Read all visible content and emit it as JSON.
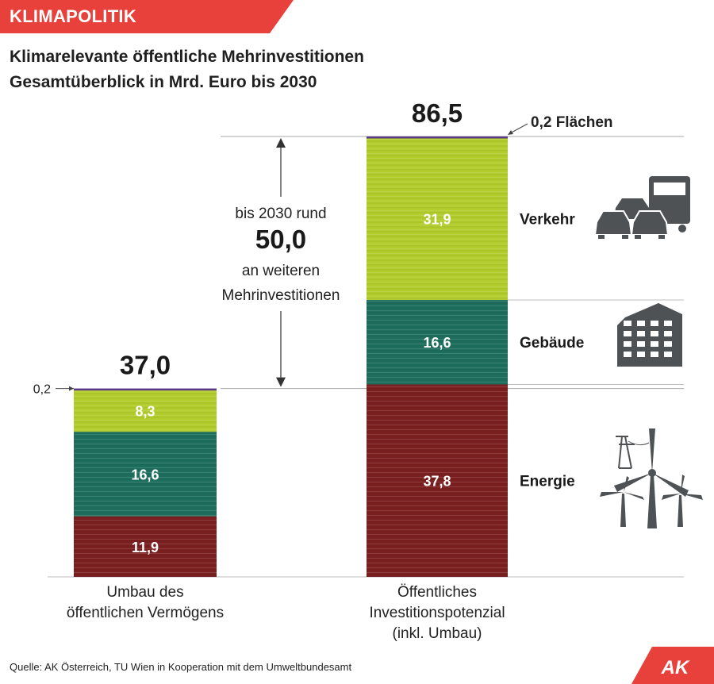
{
  "header": {
    "section": "KLIMAPOLITIK",
    "title_line1": "Klimarelevante öffentliche Mehrinvestitionen",
    "title_line2": "Gesamtüberblick in Mrd. Euro bis 2030"
  },
  "colors": {
    "accent_red": "#e8413b",
    "verkehr": "#b3cd2c",
    "gebaeude": "#1e6e5e",
    "energie": "#7b2020",
    "flaechen": "#5a3a8a",
    "icon": "#4e5254"
  },
  "chart_data": {
    "type": "bar",
    "stacked": true,
    "unit": "Mrd. Euro",
    "categories": [
      "Umbau des öffentlichen Vermögens",
      "Öffentliches Investitionspotenzial (inkl. Umbau)"
    ],
    "category_label_lines": [
      [
        "Umbau des",
        "öffentlichen Vermögens"
      ],
      [
        "Öffentliches",
        "Investitionspotenzial",
        "(inkl. Umbau)"
      ]
    ],
    "totals": [
      37.0,
      86.5
    ],
    "total_labels": [
      "37,0",
      "86,5"
    ],
    "series": [
      {
        "name": "Energie",
        "values": [
          11.9,
          37.8
        ],
        "labels": [
          "11,9",
          "37,8"
        ]
      },
      {
        "name": "Gebäude",
        "values": [
          16.6,
          16.6
        ],
        "labels": [
          "16,6",
          "16,6"
        ]
      },
      {
        "name": "Verkehr",
        "values": [
          8.3,
          31.9
        ],
        "labels": [
          "8,3",
          "31,9"
        ]
      },
      {
        "name": "Flächen",
        "values": [
          0.2,
          0.2
        ],
        "labels": [
          "0,2",
          "0,2 Flächen"
        ]
      }
    ],
    "difference": {
      "value": 50.0,
      "value_label": "50,0",
      "text_lines": [
        "bis 2030 rund",
        "an weiteren",
        "Mehrinvestitionen"
      ]
    },
    "ylim": [
      0,
      86.5
    ],
    "legend": "right"
  },
  "footer": {
    "source": "Quelle: AK Österreich, TU Wien in Kooperation mit dem Umweltbundesamt",
    "logo_text": "AK"
  }
}
